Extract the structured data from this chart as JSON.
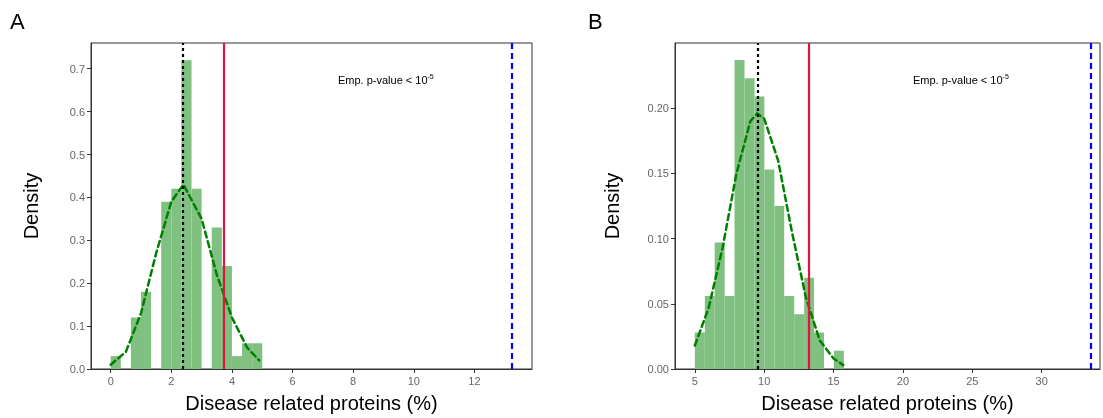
{
  "chart_data": [
    {
      "type": "histogram",
      "title": "A",
      "xlabel": "Disease related proteins (%)",
      "ylabel": "Density",
      "color": "#80c080",
      "bins": [
        0,
        0.333,
        0.667,
        1,
        1.333,
        1.667,
        2,
        2.333,
        2.667,
        3,
        3.333,
        3.667,
        4,
        4.333,
        4.667,
        5
      ],
      "values": [
        0.03,
        0,
        0.12,
        0.18,
        0,
        0.39,
        0.42,
        0.72,
        0.42,
        0,
        0.33,
        0.24,
        0.03,
        0.06,
        0.06
      ],
      "series": [
        {
          "type": "line",
          "color": "#008000",
          "line_style": "dashed",
          "x": [
            0,
            0.5,
            1,
            1.5,
            2,
            2.4,
            3,
            3.5,
            4,
            4.5,
            4.9
          ],
          "values": [
            0.01,
            0.04,
            0.13,
            0.27,
            0.39,
            0.43,
            0.35,
            0.22,
            0.12,
            0.05,
            0.02
          ]
        }
      ],
      "ref_lines": [
        {
          "axis": "x",
          "value": 2.39,
          "color": "#000000",
          "line_style": "dotted"
        },
        {
          "axis": "x",
          "value": 3.74,
          "color": "#e0143c",
          "line_style": "solid"
        },
        {
          "axis": "x",
          "value": 13.23,
          "color": "#0000ff",
          "line_style": "dashed"
        }
      ],
      "annotations": [
        "Emp. p-value < 10$^{-5}$"
      ],
      "xlim": [
        -0.65,
        13.9
      ],
      "xticks": [
        0,
        2,
        4,
        6,
        8,
        10,
        12
      ],
      "ylim": [
        0,
        0.76
      ],
      "yticks": [
        {
          "value": 0,
          "label": "0.0"
        },
        0.1,
        0.2,
        0.3,
        0.4,
        0.5,
        0.6,
        0.7
      ],
      "grid": false
    },
    {
      "type": "histogram",
      "title": "B",
      "xlabel": "Disease related proteins (%)",
      "ylabel": "Density",
      "color": "#80c080",
      "bins": [
        5,
        5.72,
        6.43,
        7.15,
        7.86,
        8.58,
        9.3,
        10.01,
        10.73,
        11.44,
        12.16,
        12.88,
        13.59,
        14.31,
        15.02,
        15.74
      ],
      "values": [
        0.028,
        0.056,
        0.097,
        0.056,
        0.237,
        0.223,
        0.209,
        0.153,
        0.125,
        0.056,
        0.042,
        0.07,
        0.028,
        0,
        0.014
      ],
      "series": [
        {
          "type": "line",
          "color": "#008000",
          "line_style": "dashed",
          "x": [
            5,
            6,
            7,
            8,
            9,
            9.5,
            10,
            11,
            12,
            13,
            14,
            15,
            15.7
          ],
          "values": [
            0.018,
            0.047,
            0.093,
            0.15,
            0.19,
            0.196,
            0.192,
            0.16,
            0.105,
            0.055,
            0.022,
            0.008,
            0.003
          ]
        }
      ],
      "ref_lines": [
        {
          "axis": "x",
          "value": 9.52,
          "color": "#000000",
          "line_style": "dotted"
        },
        {
          "axis": "x",
          "value": 13.24,
          "color": "#e0143c",
          "line_style": "solid"
        },
        {
          "axis": "x",
          "value": 33.5,
          "color": "#0000ff",
          "line_style": "dashed"
        }
      ],
      "annotations": [
        "Emp. p-value < 10$^{-5}$"
      ],
      "xlim": [
        3.57,
        34.2
      ],
      "xticks": [
        5,
        10,
        15,
        20,
        25,
        30
      ],
      "ylim": [
        0,
        0.25
      ],
      "yticks": [
        {
          "value": 0,
          "label": "0.00"
        },
        {
          "value": 0.05,
          "label": "0.05"
        },
        {
          "value": 0.1,
          "label": "0.10"
        },
        {
          "value": 0.15,
          "label": "0.15"
        },
        {
          "value": 0.2,
          "label": "0.20"
        }
      ],
      "grid": false
    }
  ]
}
